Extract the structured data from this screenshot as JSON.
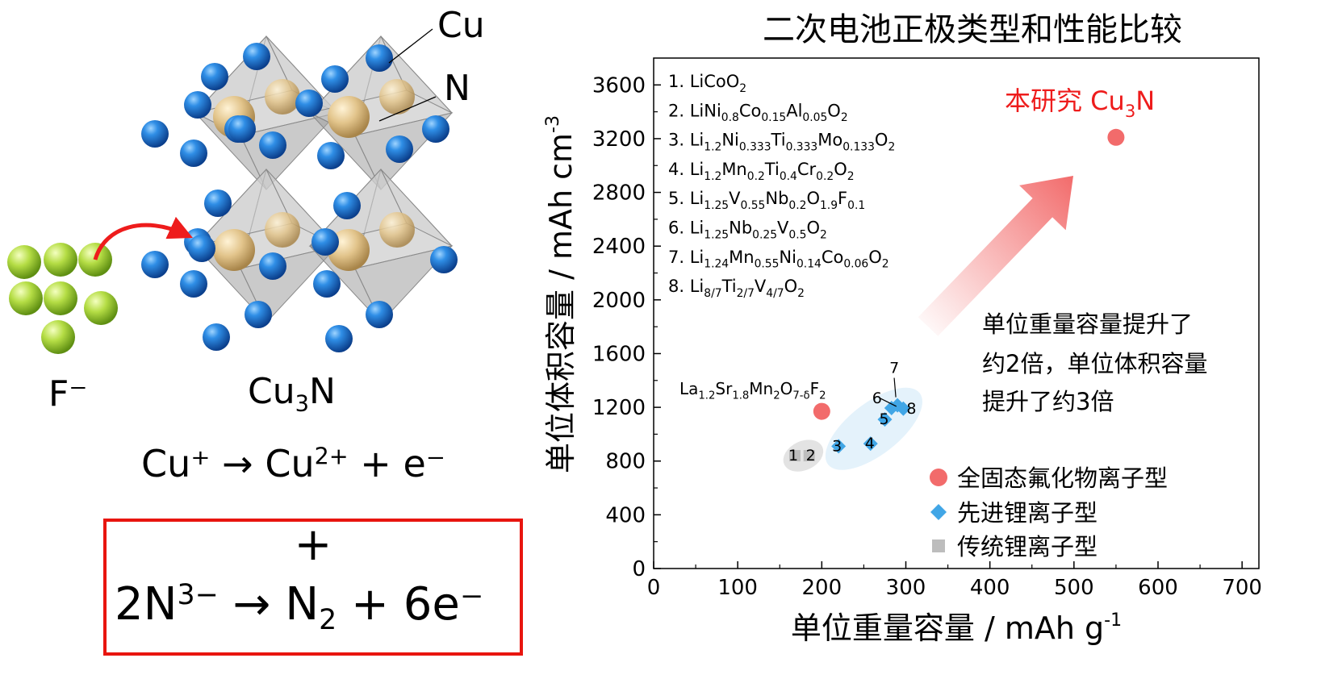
{
  "crystal": {
    "label_cu": "Cu",
    "label_n": "N",
    "label_f": "F⁻",
    "compound": {
      "main": "Cu",
      "sub": "3",
      "tail": "N"
    }
  },
  "equations": {
    "eq1": {
      "a": "Cu⁺ → Cu",
      "a_sup": "2+",
      "b": " + e⁻"
    },
    "plus": "+",
    "eq2": {
      "a": "2N",
      "a_sup": "3−",
      "b": " → N",
      "b_sub": "2",
      "c": " + 6e⁻"
    }
  },
  "chart_data": {
    "type": "scatter",
    "title": "二次电池正极类型和性能比较",
    "xlabel": "单位重量容量 / mAh g⁻¹",
    "ylabel": "单位体积容量 / mAh cm⁻³",
    "xlim": [
      0,
      720
    ],
    "ylim": [
      0,
      3800
    ],
    "xticks": [
      0,
      100,
      200,
      300,
      400,
      500,
      600,
      700
    ],
    "yticks": [
      0,
      400,
      800,
      1200,
      1600,
      2000,
      2400,
      2800,
      3200,
      3600
    ],
    "legend_position": "bottom-right",
    "series": [
      {
        "name": "全固态氟化物离子型",
        "marker": "circle",
        "color": "#f26b6b",
        "points": [
          {
            "x": 200,
            "y": 1170,
            "label": "La1.2Sr1.8Mn2O7-δF2"
          },
          {
            "x": 550,
            "y": 3210,
            "label": "本研究 Cu3N"
          }
        ]
      },
      {
        "name": "先进锂离子型",
        "marker": "diamond",
        "color": "#41a6e6",
        "points": [
          {
            "x": 220,
            "y": 910,
            "label": "3"
          },
          {
            "x": 258,
            "y": 930,
            "label": "4"
          },
          {
            "x": 275,
            "y": 1110,
            "label": "5"
          },
          {
            "x": 283,
            "y": 1195,
            "label": "6"
          },
          {
            "x": 290,
            "y": 1215,
            "label": "7"
          },
          {
            "x": 297,
            "y": 1190,
            "label": "8"
          }
        ]
      },
      {
        "name": "传统锂离子型",
        "marker": "square",
        "color": "#bdbdbd",
        "points": [
          {
            "x": 168,
            "y": 840,
            "label": "1"
          },
          {
            "x": 185,
            "y": 840,
            "label": "2"
          }
        ]
      }
    ],
    "compounds": [
      {
        "n": "1. ",
        "parts": [
          [
            "t",
            "LiCoO"
          ],
          [
            "s",
            "2"
          ]
        ]
      },
      {
        "n": "2. ",
        "parts": [
          [
            "t",
            "LiNi"
          ],
          [
            "s",
            "0.8"
          ],
          [
            "t",
            "Co"
          ],
          [
            "s",
            "0.15"
          ],
          [
            "t",
            "Al"
          ],
          [
            "s",
            "0.05"
          ],
          [
            "t",
            "O"
          ],
          [
            "s",
            "2"
          ]
        ]
      },
      {
        "n": "3. ",
        "parts": [
          [
            "t",
            "Li"
          ],
          [
            "s",
            "1.2"
          ],
          [
            "t",
            "Ni"
          ],
          [
            "s",
            "0.333"
          ],
          [
            "t",
            "Ti"
          ],
          [
            "s",
            "0.333"
          ],
          [
            "t",
            "Mo"
          ],
          [
            "s",
            "0.133"
          ],
          [
            "t",
            "O"
          ],
          [
            "s",
            "2"
          ]
        ]
      },
      {
        "n": "4. ",
        "parts": [
          [
            "t",
            "Li"
          ],
          [
            "s",
            "1.2"
          ],
          [
            "t",
            "Mn"
          ],
          [
            "s",
            "0.2"
          ],
          [
            "t",
            "Ti"
          ],
          [
            "s",
            "0.4"
          ],
          [
            "t",
            "Cr"
          ],
          [
            "s",
            "0.2"
          ],
          [
            "t",
            "O"
          ],
          [
            "s",
            "2"
          ]
        ]
      },
      {
        "n": "5. ",
        "parts": [
          [
            "t",
            "Li"
          ],
          [
            "s",
            "1.25"
          ],
          [
            "t",
            "V"
          ],
          [
            "s",
            "0.55"
          ],
          [
            "t",
            "Nb"
          ],
          [
            "s",
            "0.2"
          ],
          [
            "t",
            "O"
          ],
          [
            "s",
            "1.9"
          ],
          [
            "t",
            "F"
          ],
          [
            "s",
            "0.1"
          ]
        ]
      },
      {
        "n": "6. ",
        "parts": [
          [
            "t",
            "Li"
          ],
          [
            "s",
            "1.25"
          ],
          [
            "t",
            "Nb"
          ],
          [
            "s",
            "0.25"
          ],
          [
            "t",
            "V"
          ],
          [
            "s",
            "0.5"
          ],
          [
            "t",
            "O"
          ],
          [
            "s",
            "2"
          ]
        ]
      },
      {
        "n": "7. ",
        "parts": [
          [
            "t",
            "Li"
          ],
          [
            "s",
            "1.24"
          ],
          [
            "t",
            "Mn"
          ],
          [
            "s",
            "0.55"
          ],
          [
            "t",
            "Ni"
          ],
          [
            "s",
            "0.14"
          ],
          [
            "t",
            "Co"
          ],
          [
            "s",
            "0.06"
          ],
          [
            "t",
            "O"
          ],
          [
            "s",
            "2"
          ]
        ]
      },
      {
        "n": "8. ",
        "parts": [
          [
            "t",
            "Li"
          ],
          [
            "s",
            "8/7"
          ],
          [
            "t",
            "Ti"
          ],
          [
            "s",
            "2/7"
          ],
          [
            "t",
            "V"
          ],
          [
            "s",
            "4/7"
          ],
          [
            "t",
            "O"
          ],
          [
            "s",
            "2"
          ]
        ]
      }
    ],
    "annotations": {
      "la_label": [
        [
          "t",
          "La"
        ],
        [
          "s",
          "1.2"
        ],
        [
          "t",
          "Sr"
        ],
        [
          "s",
          "1.8"
        ],
        [
          "t",
          "Mn"
        ],
        [
          "s",
          "2"
        ],
        [
          "t",
          "O"
        ],
        [
          "s",
          "7-δ"
        ],
        [
          "t",
          "F"
        ],
        [
          "s",
          "2"
        ]
      ],
      "this_work": [
        [
          "t",
          "本研究 Cu"
        ],
        [
          "s",
          "3"
        ],
        [
          "t",
          "N"
        ]
      ],
      "improvement_lines": [
        "单位重量容量提升了",
        "约2倍，单位体积容量",
        "提升了约3倍"
      ]
    }
  }
}
